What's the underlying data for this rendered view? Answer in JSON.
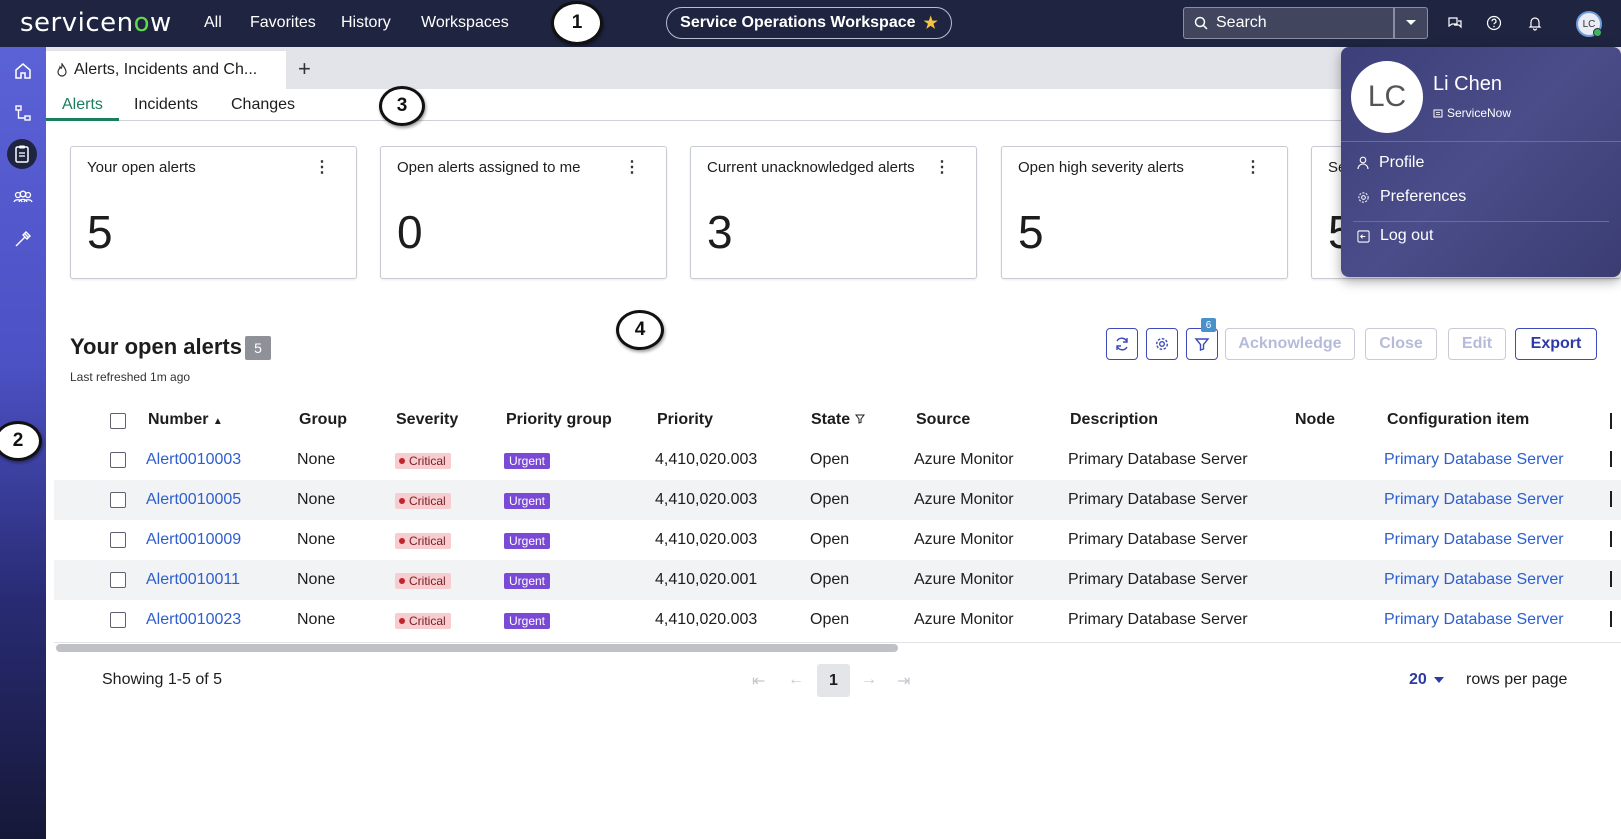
{
  "topbar": {
    "logo_text_a": "servicen",
    "logo_text_o": "o",
    "logo_text_b": "w",
    "nav": [
      "All",
      "Favorites",
      "History",
      "Workspaces"
    ],
    "workspace": "Service Operations Workspace",
    "search_placeholder": "Search",
    "avatar_initials": "LC"
  },
  "annotations": [
    "1",
    "2",
    "3",
    "4"
  ],
  "tabstrip": {
    "doc_tab": "Alerts, Incidents and Ch...",
    "subtabs": [
      "Alerts",
      "Incidents",
      "Changes"
    ]
  },
  "cards": [
    {
      "title": "Your open alerts",
      "value": "5"
    },
    {
      "title": "Open alerts assigned to me",
      "value": "0"
    },
    {
      "title": "Current unacknowledged alerts",
      "value": "3"
    },
    {
      "title": "Open high severity alerts",
      "value": "5"
    },
    {
      "title": "Se",
      "value": "5"
    }
  ],
  "section": {
    "title": "Your open alerts",
    "count": "5",
    "subtitle": "Last refreshed 1m ago",
    "filter_count": "6",
    "buttons": {
      "acknowledge": "Acknowledge",
      "close": "Close",
      "edit": "Edit",
      "export": "Export"
    }
  },
  "table": {
    "headers": [
      "Number",
      "Group",
      "Severity",
      "Priority group",
      "Priority",
      "State",
      "Source",
      "Description",
      "Node",
      "Configuration item"
    ],
    "rows": [
      {
        "number": "Alert0010003",
        "group": "None",
        "severity": "Critical",
        "priority_group": "Urgent",
        "priority": "4,410,020.003",
        "state": "Open",
        "source": "Azure Monitor",
        "description": "Primary Database Server",
        "node": "",
        "ci": "Primary Database Server"
      },
      {
        "number": "Alert0010005",
        "group": "None",
        "severity": "Critical",
        "priority_group": "Urgent",
        "priority": "4,410,020.003",
        "state": "Open",
        "source": "Azure Monitor",
        "description": "Primary Database Server",
        "node": "",
        "ci": "Primary Database Server"
      },
      {
        "number": "Alert0010009",
        "group": "None",
        "severity": "Critical",
        "priority_group": "Urgent",
        "priority": "4,410,020.003",
        "state": "Open",
        "source": "Azure Monitor",
        "description": "Primary Database Server",
        "node": "",
        "ci": "Primary Database Server"
      },
      {
        "number": "Alert0010011",
        "group": "None",
        "severity": "Critical",
        "priority_group": "Urgent",
        "priority": "4,410,020.001",
        "state": "Open",
        "source": "Azure Monitor",
        "description": "Primary Database Server",
        "node": "",
        "ci": "Primary Database Server"
      },
      {
        "number": "Alert0010023",
        "group": "None",
        "severity": "Critical",
        "priority_group": "Urgent",
        "priority": "4,410,020.003",
        "state": "Open",
        "source": "Azure Monitor",
        "description": "Primary Database Server",
        "node": "",
        "ci": "Primary Database Server"
      }
    ]
  },
  "footer": {
    "showing": "Showing 1-5 of 5",
    "page": "1",
    "rows_per_page_value": "20",
    "rows_per_page_label": "rows per page"
  },
  "user_menu": {
    "initials": "LC",
    "name": "Li Chen",
    "company": "ServiceNow",
    "items": [
      "Profile",
      "Preferences",
      "Log out"
    ]
  },
  "colors": {
    "topbar": "#1f2541",
    "accent_green": "#1a7f5a",
    "link": "#2d5ecf",
    "primary_btn": "#2d3aa5"
  }
}
